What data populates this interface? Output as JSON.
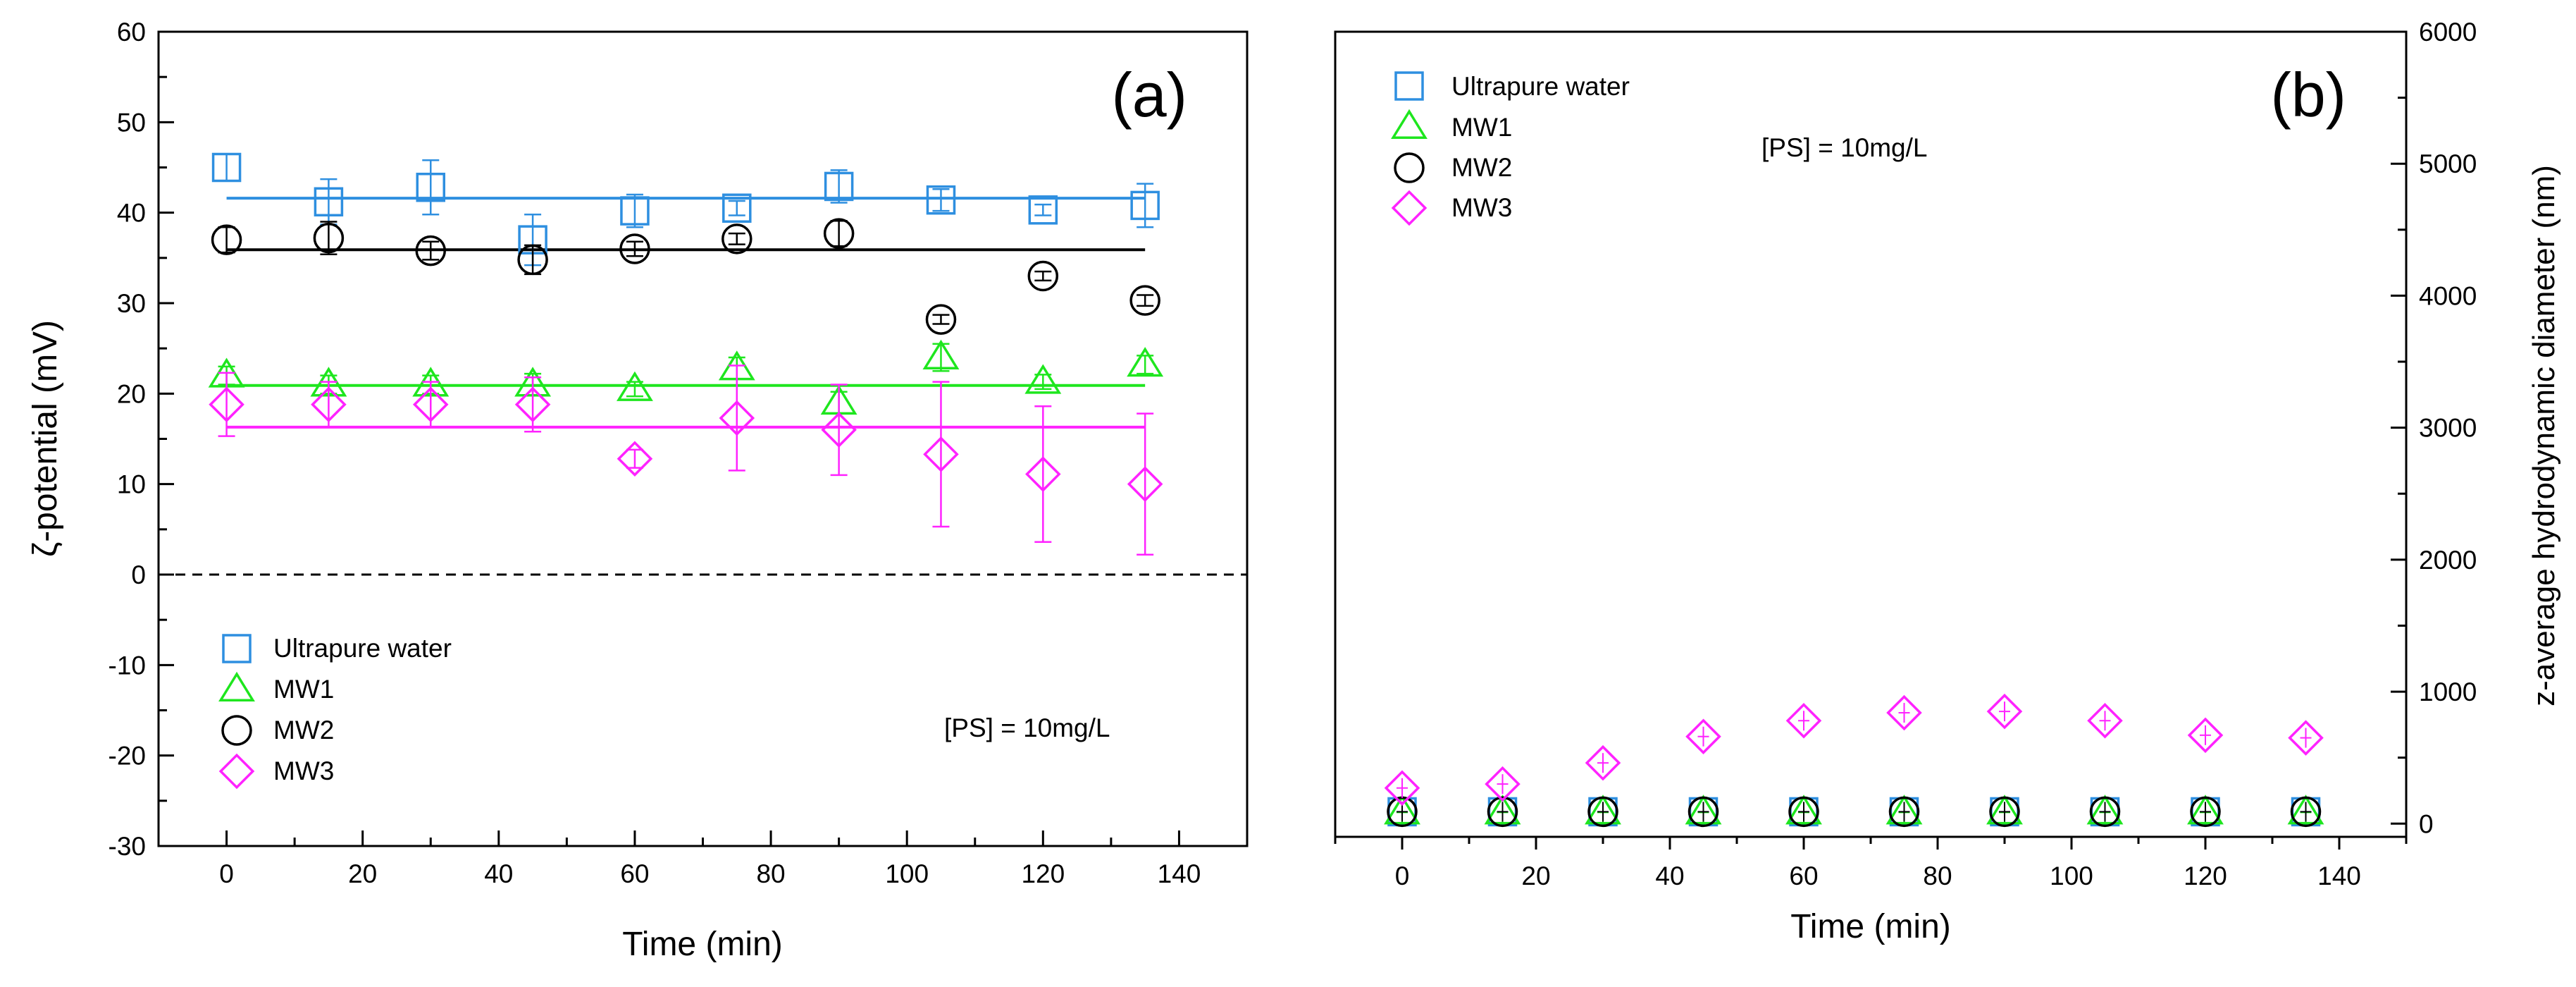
{
  "chart_data": [
    {
      "type": "scatter",
      "panel_label": "(a)",
      "annotation": "[PS] = 10mg/L",
      "xlabel": "Time (min)",
      "ylabel": "ζ-potential (mV)",
      "xlim": [
        -10,
        150
      ],
      "ylim": [
        -30,
        60
      ],
      "xticks": [
        "0",
        "20",
        "40",
        "60",
        "80",
        "100",
        "120",
        "140"
      ],
      "yticks": [
        "-30",
        "-20",
        "-10",
        "0",
        "10",
        "20",
        "30",
        "40",
        "50",
        "60"
      ],
      "legend": {
        "position": "lower-left",
        "entries": [
          "Ultrapure water",
          "MW1",
          "MW2",
          "MW3"
        ]
      },
      "reference_line": {
        "y": 0,
        "style": "dashed"
      },
      "x": [
        0,
        15,
        30,
        45,
        60,
        75,
        90,
        105,
        120,
        135
      ],
      "series": [
        {
          "name": "Ultrapure water",
          "marker": "square",
          "color": "#2e8fe0",
          "values": [
            45,
            41.2,
            42.8,
            37,
            40.2,
            40.5,
            42.9,
            41.4,
            40.3,
            40.8
          ],
          "errors": [
            1.5,
            2.5,
            3.0,
            2.8,
            1.8,
            0.8,
            1.8,
            1.2,
            0.6,
            2.4
          ],
          "fit_line": {
            "y": 41.6,
            "x_range": [
              0,
              135
            ]
          }
        },
        {
          "name": "MW1",
          "marker": "triangle",
          "color": "#1ee61e",
          "values": [
            22,
            21,
            21,
            21,
            20.5,
            22.8,
            19,
            24,
            21.3,
            23.2
          ],
          "errors": [
            1.0,
            1.0,
            1.0,
            1.2,
            0.8,
            1.2,
            1.2,
            1.5,
            0.8,
            1.0
          ],
          "fit_line": {
            "y": 20.9,
            "x_range": [
              0,
              135
            ]
          }
        },
        {
          "name": "MW2",
          "marker": "circle",
          "color": "#000000",
          "values": [
            37,
            37.2,
            35.8,
            34.8,
            36,
            37.1,
            37.7,
            28.2,
            33,
            30.3
          ],
          "errors": [
            1.4,
            1.8,
            1.0,
            1.6,
            0.8,
            0.6,
            1.4,
            0.5,
            0.5,
            0.6
          ],
          "fit_line": {
            "y": 35.9,
            "x_range": [
              0,
              135
            ]
          }
        },
        {
          "name": "MW3",
          "marker": "diamond",
          "color": "#ff22ff",
          "values": [
            18.8,
            18.8,
            18.8,
            18.8,
            12.8,
            17.3,
            16,
            13.3,
            11.1,
            10
          ],
          "errors": [
            3.5,
            2.5,
            2.5,
            3.0,
            1.0,
            5.8,
            5.0,
            8.0,
            7.5,
            7.8
          ],
          "fit_line": {
            "y": 16.3,
            "x_range": [
              0,
              135
            ]
          }
        }
      ]
    },
    {
      "type": "scatter",
      "panel_label": "(b)",
      "annotation": "[PS] = 10mg/L",
      "xlabel": "Time (min)",
      "ylabel": "z-average hydrodynamic diameter (nm)",
      "ylabel_side": "right",
      "xlim": [
        -10,
        150
      ],
      "ylim": [
        -100,
        6000
      ],
      "xticks": [
        "0",
        "20",
        "40",
        "60",
        "80",
        "100",
        "120",
        "140"
      ],
      "yticks": [
        "0",
        "1000",
        "2000",
        "3000",
        "4000",
        "5000",
        "6000"
      ],
      "legend": {
        "position": "top-left",
        "entries": [
          "Ultrapure water",
          "MW1",
          "MW2",
          "MW3"
        ]
      },
      "x": [
        0,
        15,
        30,
        45,
        60,
        75,
        90,
        105,
        120,
        135
      ],
      "series": [
        {
          "name": "Ultrapure water",
          "marker": "square",
          "color": "#2e8fe0",
          "values": [
            90,
            90,
            90,
            90,
            90,
            90,
            90,
            90,
            90,
            90
          ]
        },
        {
          "name": "MW1",
          "marker": "triangle",
          "color": "#1ee61e",
          "values": [
            85,
            85,
            85,
            85,
            85,
            85,
            85,
            85,
            85,
            85
          ]
        },
        {
          "name": "MW2",
          "marker": "circle",
          "color": "#000000",
          "values": [
            90,
            90,
            90,
            90,
            90,
            90,
            90,
            90,
            90,
            90
          ]
        },
        {
          "name": "MW3",
          "marker": "diamond",
          "color": "#ff22ff",
          "values": [
            270,
            300,
            460,
            660,
            780,
            840,
            850,
            780,
            670,
            650
          ]
        }
      ]
    }
  ]
}
